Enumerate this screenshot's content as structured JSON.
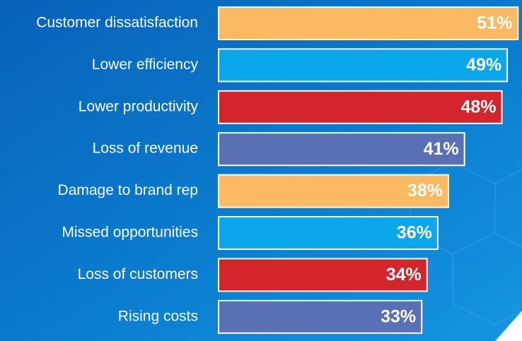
{
  "chart_data": {
    "type": "bar",
    "orientation": "horizontal",
    "categories": [
      "Customer dissatisfaction",
      "Lower efficiency",
      "Lower productivity",
      "Loss of revenue",
      "Damage to brand rep",
      "Missed opportunities",
      "Loss of customers",
      "Rising costs"
    ],
    "values": [
      51,
      49,
      48,
      41,
      38,
      36,
      34,
      33
    ],
    "value_labels": [
      "51%",
      "49%",
      "48%",
      "41%",
      "38%",
      "36%",
      "34%",
      "33%"
    ],
    "colors": [
      "#fbb963",
      "#0aa8ea",
      "#d2262c",
      "#5a70b5",
      "#fbb963",
      "#0aa8ea",
      "#d2262c",
      "#5a70b5"
    ],
    "xlim": [
      -5,
      51.5
    ]
  }
}
